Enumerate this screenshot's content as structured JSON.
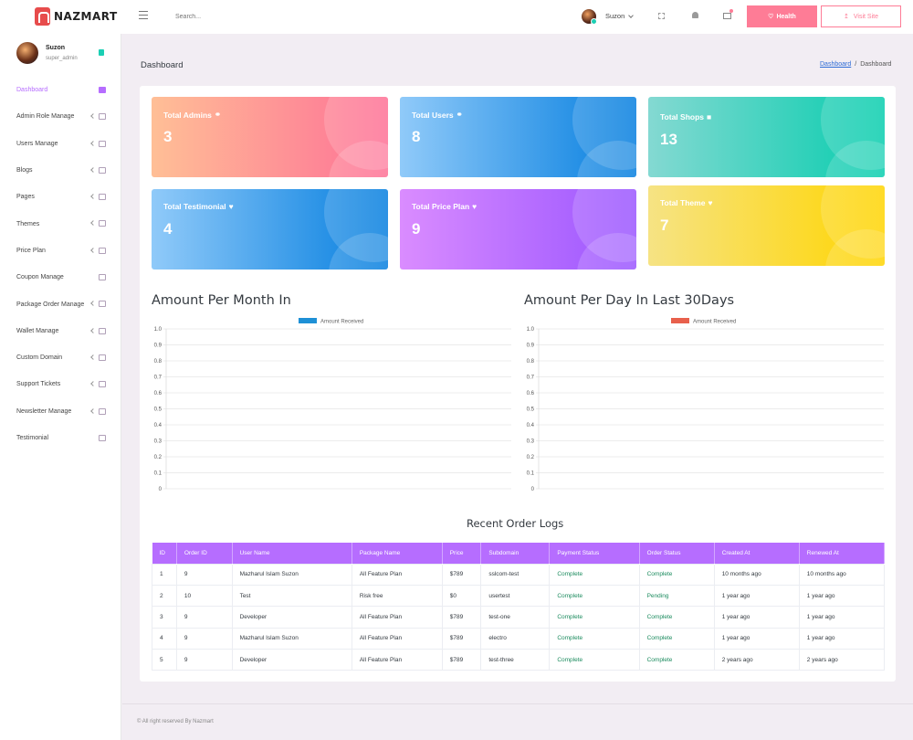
{
  "brand": {
    "name": "NAZMART"
  },
  "topbar": {
    "search_placeholder": "Search...",
    "user_name": "Suzon",
    "health_label": "Health",
    "visit_label": "Visit Site"
  },
  "sidebar": {
    "user_name": "Suzon",
    "user_role": "super_admin",
    "items": [
      {
        "label": "Dashboard",
        "active": true
      },
      {
        "label": "Admin Role Manage"
      },
      {
        "label": "Users Manage"
      },
      {
        "label": "Blogs"
      },
      {
        "label": "Pages"
      },
      {
        "label": "Themes"
      },
      {
        "label": "Price Plan"
      },
      {
        "label": "Coupon Manage"
      },
      {
        "label": "Package Order Manage"
      },
      {
        "label": "Wallet Manage"
      },
      {
        "label": "Custom Domain"
      },
      {
        "label": "Support Tickets"
      },
      {
        "label": "Newsletter Manage"
      },
      {
        "label": "Testimonial"
      }
    ]
  },
  "page": {
    "title": "Dashboard",
    "breadcrumb_link": "Dashboard",
    "breadcrumb_sep": "/",
    "breadcrumb_current": "Dashboard"
  },
  "stats": [
    {
      "label": "Total Admins",
      "value": "3"
    },
    {
      "label": "Total Users",
      "value": "8"
    },
    {
      "label": "Total Shops",
      "value": "13"
    },
    {
      "label": "Total Testimonial",
      "value": "4"
    },
    {
      "label": "Total Price Plan",
      "value": "9"
    },
    {
      "label": "Total Theme",
      "value": "7"
    }
  ],
  "chart_titles": {
    "month": "Amount Per Month In",
    "day": "Amount Per Day In Last 30Days"
  },
  "chart_data": [
    {
      "type": "bar",
      "title": "Amount Per Month In",
      "series": [
        {
          "name": "Amount Received",
          "values": [],
          "color": "#1e90d6"
        }
      ],
      "categories": [],
      "yticks": [
        "1.0",
        "0.9",
        "0.8",
        "0.7",
        "0.6",
        "0.5",
        "0.4",
        "0.3",
        "0.2",
        "0.1",
        "0"
      ],
      "ylim": [
        0,
        1
      ],
      "grid": true,
      "legend": "top-center"
    },
    {
      "type": "bar",
      "title": "Amount Per Day In Last 30Days",
      "series": [
        {
          "name": "Amount Received",
          "values": [],
          "color": "#e8604c"
        }
      ],
      "categories": [],
      "yticks": [
        "1.0",
        "0.9",
        "0.8",
        "0.7",
        "0.6",
        "0.5",
        "0.4",
        "0.3",
        "0.2",
        "0.1",
        "0"
      ],
      "ylim": [
        0,
        1
      ],
      "grid": true,
      "legend": "top-center"
    }
  ],
  "orders": {
    "title": "Recent Order Logs",
    "columns": [
      "ID",
      "Order ID",
      "User Name",
      "Package Name",
      "Price",
      "Subdomain",
      "Payment Status",
      "Order Status",
      "Created At",
      "Renewed At"
    ],
    "rows": [
      [
        "1",
        "9",
        "Mazharul Islam Suzon",
        "All Feature Plan",
        "$789",
        "sslcom-test",
        "Complete",
        "Complete",
        "10 months ago",
        "10 months ago"
      ],
      [
        "2",
        "10",
        "Test",
        "Risk free",
        "$0",
        "usertest",
        "Complete",
        "Pending",
        "1 year ago",
        "1 year ago"
      ],
      [
        "3",
        "9",
        "Developer",
        "All Feature Plan",
        "$789",
        "test-one",
        "Complete",
        "Complete",
        "1 year ago",
        "1 year ago"
      ],
      [
        "4",
        "9",
        "Mazharul Islam Suzon",
        "All Feature Plan",
        "$789",
        "electro",
        "Complete",
        "Complete",
        "1 year ago",
        "1 year ago"
      ],
      [
        "5",
        "9",
        "Developer",
        "All Feature Plan",
        "$789",
        "test-three",
        "Complete",
        "Complete",
        "2 years ago",
        "2 years ago"
      ]
    ]
  },
  "footer": {
    "text": "© All right reserved By Nazmart"
  }
}
